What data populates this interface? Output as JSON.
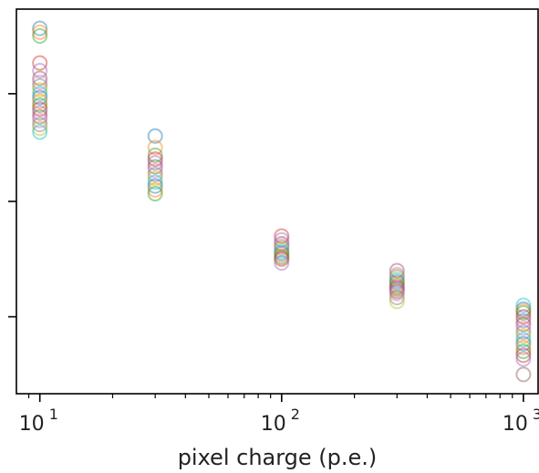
{
  "chart_data": {
    "type": "scatter",
    "title": "",
    "xlabel": "pixel charge (p.e.)",
    "ylabel": "",
    "xscale": "log",
    "xlim": [
      8,
      1150
    ],
    "ylim": [
      0,
      1
    ],
    "grid": false,
    "legend": "none",
    "x_ticks": [
      {
        "value": 10,
        "base": "10",
        "exp": "1"
      },
      {
        "value": 100,
        "base": "10",
        "exp": "2"
      },
      {
        "value": 1000,
        "base": "10",
        "exp": "3"
      }
    ],
    "y_ticks_unlabeled": [
      0.2,
      0.5,
      0.78
    ],
    "marker": "open-circle",
    "palette": [
      "#1f77b4",
      "#ff7f0e",
      "#2ca02c",
      "#d62728",
      "#9467bd",
      "#8c564b",
      "#e377c2",
      "#7f7f7f",
      "#bcbd22",
      "#17becf"
    ],
    "groups": [
      {
        "x": 10,
        "y": [
          0.95,
          0.94,
          0.93,
          0.86,
          0.84,
          0.82,
          0.81,
          0.8,
          0.79,
          0.78,
          0.77,
          0.76,
          0.75,
          0.74,
          0.73,
          0.72,
          0.71,
          0.7,
          0.69,
          0.68
        ]
      },
      {
        "x": 30,
        "y": [
          0.67,
          0.64,
          0.62,
          0.61,
          0.6,
          0.59,
          0.58,
          0.57,
          0.56,
          0.55,
          0.54,
          0.53,
          0.52
        ]
      },
      {
        "x": 100,
        "y": [
          0.41,
          0.4,
          0.39,
          0.385,
          0.38,
          0.375,
          0.37,
          0.365,
          0.36,
          0.355,
          0.35,
          0.34
        ]
      },
      {
        "x": 300,
        "y": [
          0.32,
          0.31,
          0.305,
          0.3,
          0.295,
          0.29,
          0.285,
          0.28,
          0.275,
          0.27,
          0.265,
          0.26,
          0.25,
          0.24
        ]
      },
      {
        "x": 1000,
        "y": [
          0.23,
          0.22,
          0.215,
          0.21,
          0.2,
          0.19,
          0.18,
          0.17,
          0.16,
          0.15,
          0.14,
          0.13,
          0.12,
          0.11,
          0.1,
          0.09,
          0.05
        ]
      }
    ]
  }
}
